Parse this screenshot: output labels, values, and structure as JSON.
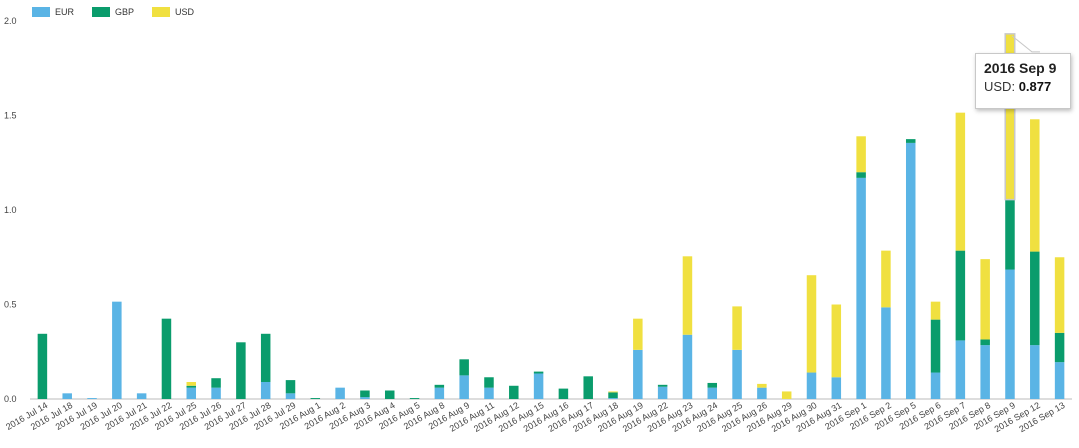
{
  "chart_data": {
    "type": "bar",
    "stacked": true,
    "categories": [
      "2016 Jul 14",
      "2016 Jul 18",
      "2016 Jul 19",
      "2016 Jul 20",
      "2016 Jul 21",
      "2016 Jul 22",
      "2016 Jul 25",
      "2016 Jul 26",
      "2016 Jul 27",
      "2016 Jul 28",
      "2016 Jul 29",
      "2016 Aug 1",
      "2016 Aug 2",
      "2016 Aug 3",
      "2016 Aug 4",
      "2016 Aug 5",
      "2016 Aug 8",
      "2016 Aug 9",
      "2016 Aug 11",
      "2016 Aug 12",
      "2016 Aug 15",
      "2016 Aug 16",
      "2016 Aug 17",
      "2016 Aug 18",
      "2016 Aug 19",
      "2016 Aug 22",
      "2016 Aug 23",
      "2016 Aug 24",
      "2016 Aug 25",
      "2016 Aug 26",
      "2016 Aug 29",
      "2016 Aug 30",
      "2016 Aug 31",
      "2016 Sep 1",
      "2016 Sep 2",
      "2016 Sep 5",
      "2016 Sep 6",
      "2016 Sep 7",
      "2016 Sep 8",
      "2016 Sep 9",
      "2016 Sep 12",
      "2016 Sep 13"
    ],
    "series": [
      {
        "name": "EUR",
        "color": "#5ab4e5",
        "values": [
          0,
          0.03,
          0.005,
          0.515,
          0.03,
          0,
          0.06,
          0.06,
          0,
          0.09,
          0.03,
          0,
          0.06,
          0.01,
          0,
          0,
          0.06,
          0.125,
          0.06,
          0,
          0.135,
          0,
          0,
          0.005,
          0.26,
          0.065,
          0.34,
          0.06,
          0.26,
          0.06,
          0,
          0.14,
          0.115,
          1.17,
          0.485,
          1.355,
          0.14,
          0.31,
          0.285,
          0.685,
          0.285,
          0.195
        ]
      },
      {
        "name": "GBP",
        "color": "#0a9c6c",
        "values": [
          0.345,
          0,
          0,
          0,
          0,
          0.425,
          0.01,
          0.05,
          0.3,
          0.255,
          0.07,
          0.005,
          0,
          0.035,
          0.045,
          0.005,
          0.015,
          0.085,
          0.055,
          0.07,
          0.01,
          0.055,
          0.12,
          0.03,
          0,
          0.01,
          0,
          0.025,
          0,
          0,
          0,
          0,
          0,
          0.03,
          0,
          0.02,
          0.28,
          0.475,
          0.03,
          0.37,
          0.495,
          0.155
        ]
      },
      {
        "name": "USD",
        "color": "#f0e040",
        "values": [
          0,
          0,
          0,
          0,
          0,
          0,
          0.02,
          0,
          0,
          0,
          0,
          0,
          0,
          0,
          0,
          0,
          0,
          0,
          0,
          0,
          0,
          0,
          0,
          0.005,
          0.165,
          0,
          0.415,
          0,
          0.23,
          0.02,
          0.04,
          0.515,
          0.385,
          0.19,
          0.3,
          0,
          0.095,
          0.73,
          0.425,
          0.877,
          0.7,
          0.4
        ]
      }
    ],
    "yticks": [
      "0.0",
      "0.5",
      "1.0",
      "1.5",
      "2.0"
    ],
    "ylim": [
      0,
      2.0
    ],
    "legend_position": "top-left",
    "grid": false
  },
  "tooltip": {
    "title": "2016 Sep 9",
    "label": "USD:",
    "value": "0.877",
    "category_index": 39,
    "series_index": 2
  }
}
